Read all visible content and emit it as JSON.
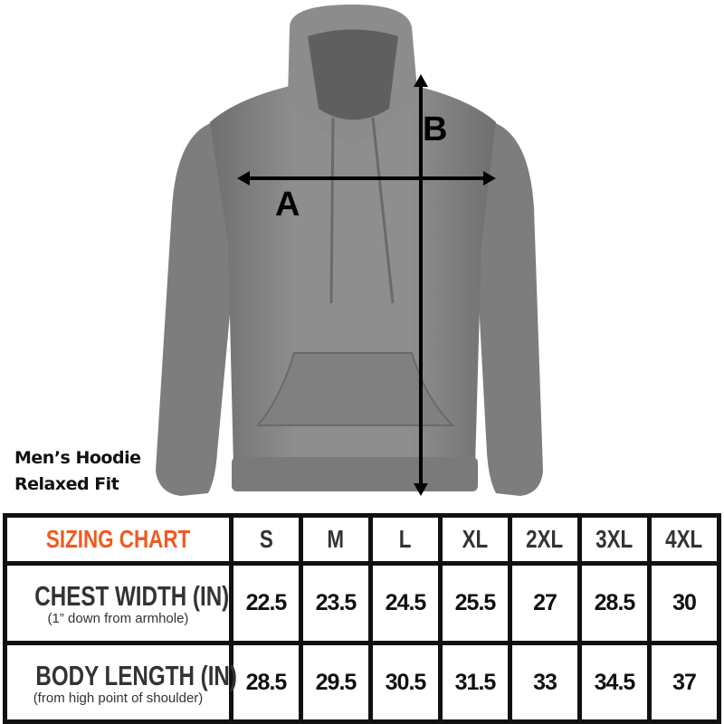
{
  "product": {
    "line1": "Men’s Hoodie",
    "line2": "Relaxed Fit"
  },
  "diagram": {
    "label_a": "A",
    "label_b": "B",
    "garment_color": "#8a8a8a"
  },
  "table": {
    "title": "SIZING CHART",
    "title_color": "#f05a22",
    "sizes": [
      "S",
      "M",
      "L",
      "XL",
      "2XL",
      "3XL",
      "4XL"
    ],
    "rows": [
      {
        "label": "CHEST WIDTH (IN)",
        "note": "(1” down from armhole)",
        "values": [
          "22.5",
          "23.5",
          "24.5",
          "25.5",
          "27",
          "28.5",
          "30"
        ]
      },
      {
        "label": "BODY LENGTH (IN)",
        "note": "(from high point of shoulder)",
        "values": [
          "28.5",
          "29.5",
          "30.5",
          "31.5",
          "33",
          "34.5",
          "37"
        ]
      }
    ]
  }
}
